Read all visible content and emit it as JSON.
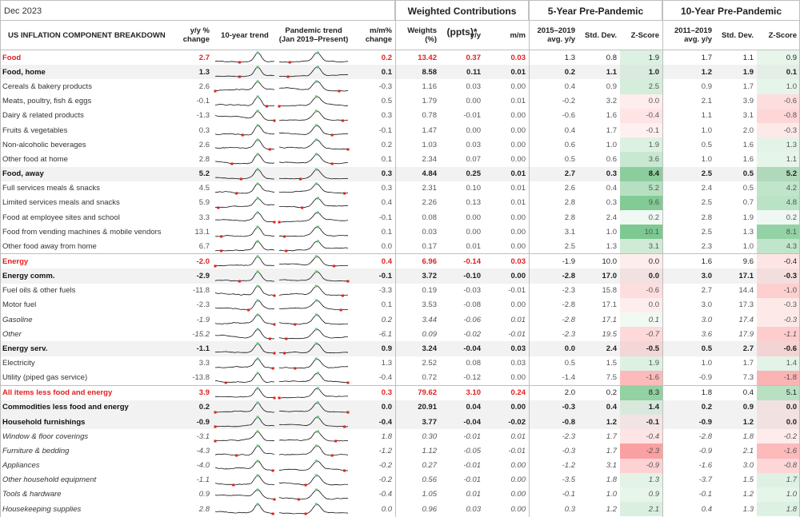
{
  "date_label": "Dec 2023",
  "groups": {
    "weighted": "Weighted Contributions (ppts)*",
    "five_year": "5-Year Pre-Pandemic",
    "ten_year": "10-Year Pre-Pandemic"
  },
  "headers": {
    "component": "US INFLATION COMPONENT BREAKDOWN",
    "yy": "y/y % change",
    "trend10": "10-year trend",
    "pandemic": "Pandemic trend (Jan 2019–Present)",
    "mm": "m/m% change",
    "weights": "Weights (%)",
    "w_yy": "y/y",
    "w_mm": "m/m",
    "f_avg": "2015–2019 avg. y/y",
    "f_sd": "Std. Dev.",
    "f_z": "Z-Score",
    "t_avg": "2011–2019 avg. y/y",
    "t_sd": "Std. Dev.",
    "t_z": "Z-Score"
  },
  "colors": {
    "section_red": "#e41e1e",
    "bold_row_bg": "#f2f2f2",
    "z_pos": "#63be7b",
    "z_neg": "#f8696b",
    "grid": "#bfbfbf"
  },
  "rows": [
    {
      "label": "Food",
      "type": "sect",
      "yy": "2.7",
      "mm": "0.2",
      "w": "13.42",
      "wyy": "0.37",
      "wmm": "0.03",
      "fa": "1.3",
      "fs": "0.8",
      "fz": "1.9",
      "ta": "1.7",
      "ts": "1.1",
      "tz": "0.9"
    },
    {
      "label": "Food, home",
      "type": "sub",
      "yy": "1.3",
      "mm": "0.1",
      "w": "8.58",
      "wyy": "0.11",
      "wmm": "0.01",
      "fa": "0.2",
      "fs": "1.1",
      "fz": "1.0",
      "ta": "1.2",
      "ts": "1.9",
      "tz": "0.1"
    },
    {
      "label": "Cereals & bakery products",
      "type": "it",
      "yy": "2.6",
      "mm": "-0.3",
      "w": "1.16",
      "wyy": "0.03",
      "wmm": "0.00",
      "fa": "0.4",
      "fs": "0.9",
      "fz": "2.5",
      "ta": "0.9",
      "ts": "1.7",
      "tz": "1.0"
    },
    {
      "label": "Meats, poultry, fish & eggs",
      "type": "it",
      "yy": "-0.1",
      "mm": "0.5",
      "w": "1.79",
      "wyy": "0.00",
      "wmm": "0.01",
      "fa": "-0.2",
      "fs": "3.2",
      "fz": "0.0",
      "ta": "2.1",
      "ts": "3.9",
      "tz": "-0.6"
    },
    {
      "label": "Dairy & related products",
      "type": "it",
      "yy": "-1.3",
      "mm": "0.3",
      "w": "0.78",
      "wyy": "-0.01",
      "wmm": "0.00",
      "fa": "-0.6",
      "fs": "1.6",
      "fz": "-0.4",
      "ta": "1.1",
      "ts": "3.1",
      "tz": "-0.8"
    },
    {
      "label": "Fruits & vegetables",
      "type": "it",
      "yy": "0.3",
      "mm": "-0.1",
      "w": "1.47",
      "wyy": "0.00",
      "wmm": "0.00",
      "fa": "0.4",
      "fs": "1.7",
      "fz": "-0.1",
      "ta": "1.0",
      "ts": "2.0",
      "tz": "-0.3"
    },
    {
      "label": "Non-alcoholic beverages",
      "type": "it",
      "yy": "2.6",
      "mm": "0.2",
      "w": "1.03",
      "wyy": "0.03",
      "wmm": "0.00",
      "fa": "0.6",
      "fs": "1.0",
      "fz": "1.9",
      "ta": "0.5",
      "ts": "1.6",
      "tz": "1.3"
    },
    {
      "label": "Other food at home",
      "type": "it",
      "yy": "2.8",
      "mm": "0.1",
      "w": "2.34",
      "wyy": "0.07",
      "wmm": "0.00",
      "fa": "0.5",
      "fs": "0.6",
      "fz": "3.6",
      "ta": "1.0",
      "ts": "1.6",
      "tz": "1.1"
    },
    {
      "label": "Food, away",
      "type": "sub",
      "yy": "5.2",
      "mm": "0.3",
      "w": "4.84",
      "wyy": "0.25",
      "wmm": "0.01",
      "fa": "2.7",
      "fs": "0.3",
      "fz": "8.4",
      "ta": "2.5",
      "ts": "0.5",
      "tz": "5.2"
    },
    {
      "label": "Full services meals & snacks",
      "type": "it",
      "yy": "4.5",
      "mm": "0.3",
      "w": "2.31",
      "wyy": "0.10",
      "wmm": "0.01",
      "fa": "2.6",
      "fs": "0.4",
      "fz": "5.2",
      "ta": "2.4",
      "ts": "0.5",
      "tz": "4.2"
    },
    {
      "label": "Limited services meals and snacks",
      "type": "it",
      "yy": "5.9",
      "mm": "0.4",
      "w": "2.26",
      "wyy": "0.13",
      "wmm": "0.01",
      "fa": "2.8",
      "fs": "0.3",
      "fz": "9.6",
      "ta": "2.5",
      "ts": "0.7",
      "tz": "4.8"
    },
    {
      "label": "Food at employee sites and school",
      "type": "it",
      "yy": "3.3",
      "mm": "-0.1",
      "w": "0.08",
      "wyy": "0.00",
      "wmm": "0.00",
      "fa": "2.8",
      "fs": "2.4",
      "fz": "0.2",
      "ta": "2.8",
      "ts": "1.9",
      "tz": "0.2"
    },
    {
      "label": "Food from vending machines & mobile vendors",
      "type": "it",
      "yy": "13.1",
      "mm": "0.1",
      "w": "0.03",
      "wyy": "0.00",
      "wmm": "0.00",
      "fa": "3.1",
      "fs": "1.0",
      "fz": "10.1",
      "ta": "2.5",
      "ts": "1.3",
      "tz": "8.1"
    },
    {
      "label": "Other food away from home",
      "type": "it",
      "yy": "6.7",
      "mm": "0.0",
      "w": "0.17",
      "wyy": "0.01",
      "wmm": "0.00",
      "fa": "2.5",
      "fs": "1.3",
      "fz": "3.1",
      "ta": "2.3",
      "ts": "1.0",
      "tz": "4.3"
    },
    {
      "label": "Energy",
      "type": "sect",
      "yy": "-2.0",
      "mm": "0.4",
      "w": "6.96",
      "wyy": "-0.14",
      "wmm": "0.03",
      "fa": "-1.9",
      "fs": "10.0",
      "fz": "0.0",
      "ta": "1.6",
      "ts": "9.6",
      "tz": "-0.4"
    },
    {
      "label": "Energy comm.",
      "type": "sub",
      "yy": "-2.9",
      "mm": "-0.1",
      "w": "3.72",
      "wyy": "-0.10",
      "wmm": "0.00",
      "fa": "-2.8",
      "fs": "17.0",
      "fz": "0.0",
      "ta": "3.0",
      "ts": "17.1",
      "tz": "-0.3"
    },
    {
      "label": "Fuel oils & other fuels",
      "type": "it",
      "yy": "-11.8",
      "mm": "-3.3",
      "w": "0.19",
      "wyy": "-0.03",
      "wmm": "-0.01",
      "fa": "-2.3",
      "fs": "15.8",
      "fz": "-0.6",
      "ta": "2.7",
      "ts": "14.4",
      "tz": "-1.0"
    },
    {
      "label": "Motor fuel",
      "type": "it",
      "yy": "-2.3",
      "mm": "0.1",
      "w": "3.53",
      "wyy": "-0.08",
      "wmm": "0.00",
      "fa": "-2.8",
      "fs": "17.1",
      "fz": "0.0",
      "ta": "3.0",
      "ts": "17.3",
      "tz": "-0.3"
    },
    {
      "label": "Gasoline",
      "type": "it ital",
      "yy": "-1.9",
      "mm": "0.2",
      "w": "3.44",
      "wyy": "-0.06",
      "wmm": "0.01",
      "fa": "-2.8",
      "fs": "17.1",
      "fz": "0.1",
      "ta": "3.0",
      "ts": "17.4",
      "tz": "-0.3"
    },
    {
      "label": "Other",
      "type": "it ital",
      "yy": "-15.2",
      "mm": "-6.1",
      "w": "0.09",
      "wyy": "-0.02",
      "wmm": "-0.01",
      "fa": "-2.3",
      "fs": "19.5",
      "fz": "-0.7",
      "ta": "3.6",
      "ts": "17.9",
      "tz": "-1.1"
    },
    {
      "label": "Energy serv.",
      "type": "sub",
      "yy": "-1.1",
      "mm": "0.9",
      "w": "3.24",
      "wyy": "-0.04",
      "wmm": "0.03",
      "fa": "0.0",
      "fs": "2.4",
      "fz": "-0.5",
      "ta": "0.5",
      "ts": "2.7",
      "tz": "-0.6"
    },
    {
      "label": "Electricity",
      "type": "it",
      "yy": "3.3",
      "mm": "1.3",
      "w": "2.52",
      "wyy": "0.08",
      "wmm": "0.03",
      "fa": "0.5",
      "fs": "1.5",
      "fz": "1.9",
      "ta": "1.0",
      "ts": "1.7",
      "tz": "1.4"
    },
    {
      "label": "Utility (piped gas service)",
      "type": "it",
      "yy": "-13.8",
      "mm": "-0.4",
      "w": "0.72",
      "wyy": "-0.12",
      "wmm": "0.00",
      "fa": "-1.4",
      "fs": "7.5",
      "fz": "-1.6",
      "ta": "-0.9",
      "ts": "7.3",
      "tz": "-1.8"
    },
    {
      "label": "All items less food and energy",
      "type": "sect",
      "yy": "3.9",
      "mm": "0.3",
      "w": "79.62",
      "wyy": "3.10",
      "wmm": "0.24",
      "fa": "2.0",
      "fs": "0.2",
      "fz": "8.3",
      "ta": "1.8",
      "ts": "0.4",
      "tz": "5.1"
    },
    {
      "label": "Commodities less food and energy",
      "type": "sub",
      "yy": "0.2",
      "mm": "0.0",
      "w": "20.91",
      "wyy": "0.04",
      "wmm": "0.00",
      "fa": "-0.3",
      "fs": "0.4",
      "fz": "1.4",
      "ta": "0.2",
      "ts": "0.9",
      "tz": "0.0"
    },
    {
      "label": "Household furnishings",
      "type": "sub",
      "yy": "-0.9",
      "mm": "-0.4",
      "w": "3.77",
      "wyy": "-0.04",
      "wmm": "-0.02",
      "fa": "-0.8",
      "fs": "1.2",
      "fz": "-0.1",
      "ta": "-0.9",
      "ts": "1.2",
      "tz": "0.0"
    },
    {
      "label": "Window & floor coverings",
      "type": "it ital",
      "yy": "-3.1",
      "mm": "1.8",
      "w": "0.30",
      "wyy": "-0.01",
      "wmm": "0.01",
      "fa": "-2.3",
      "fs": "1.7",
      "fz": "-0.4",
      "ta": "-2.8",
      "ts": "1.8",
      "tz": "-0.2"
    },
    {
      "label": "Furniture & bedding",
      "type": "it ital",
      "yy": "-4.3",
      "mm": "-1.2",
      "w": "1.12",
      "wyy": "-0.05",
      "wmm": "-0.01",
      "fa": "-0.3",
      "fs": "1.7",
      "fz": "-2.3",
      "ta": "-0.9",
      "ts": "2.1",
      "tz": "-1.6"
    },
    {
      "label": "Appliances",
      "type": "it ital",
      "yy": "-4.0",
      "mm": "-0.2",
      "w": "0.27",
      "wyy": "-0.01",
      "wmm": "0.00",
      "fa": "-1.2",
      "fs": "3.1",
      "fz": "-0.9",
      "ta": "-1.6",
      "ts": "3.0",
      "tz": "-0.8"
    },
    {
      "label": "Other household equipment",
      "type": "it ital",
      "yy": "-1.1",
      "mm": "-0.2",
      "w": "0.56",
      "wyy": "-0.01",
      "wmm": "0.00",
      "fa": "-3.5",
      "fs": "1.8",
      "fz": "1.3",
      "ta": "-3.7",
      "ts": "1.5",
      "tz": "1.7"
    },
    {
      "label": "Tools & hardware",
      "type": "it ital",
      "yy": "0.9",
      "mm": "-0.4",
      "w": "1.05",
      "wyy": "0.01",
      "wmm": "0.00",
      "fa": "-0.1",
      "fs": "1.0",
      "fz": "0.9",
      "ta": "-0.1",
      "ts": "1.2",
      "tz": "1.0"
    },
    {
      "label": "Housekeeping supplies",
      "type": "it ital",
      "yy": "2.8",
      "mm": "0.0",
      "w": "0.96",
      "wyy": "0.03",
      "wmm": "0.00",
      "fa": "0.3",
      "fs": "1.2",
      "fz": "2.1",
      "ta": "0.4",
      "ts": "1.3",
      "tz": "1.8"
    }
  ]
}
